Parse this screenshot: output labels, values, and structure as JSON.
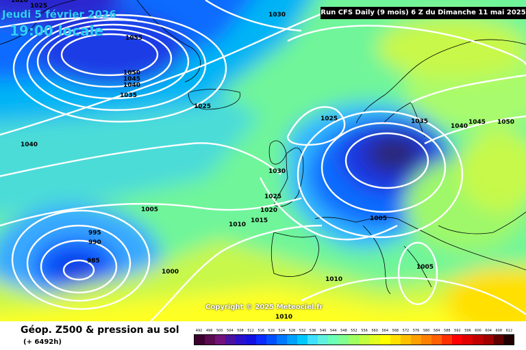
{
  "header": {
    "date": "Jeudi 5 février 2026",
    "time": "19:00 locale",
    "run_info": "Run CFS Daily (9 mois) 6 Z du Dimanche 11 mai 2025"
  },
  "copyright": "Copyright © 2025 Meteociel.fr",
  "footer": {
    "title": "Géop. Z500 & pression au sol",
    "subtitle": "(+ 6492h)"
  },
  "isobars": [
    {
      "label": "1020",
      "name": "isobar-label-1020-a"
    },
    {
      "label": "1025",
      "name": "isobar-label-1025-a"
    },
    {
      "label": "1030",
      "name": "isobar-label-1030-a"
    },
    {
      "label": "1055",
      "name": "isobar-label-1055"
    },
    {
      "label": "1050",
      "name": "isobar-label-1050-a"
    },
    {
      "label": "1045",
      "name": "isobar-label-1045-a"
    },
    {
      "label": "1040",
      "name": "isobar-label-1040-a"
    },
    {
      "label": "1035",
      "name": "isobar-label-1035-a"
    },
    {
      "label": "1025",
      "name": "isobar-label-1025-b"
    },
    {
      "label": "1025",
      "name": "isobar-label-1025-c"
    },
    {
      "label": "1040",
      "name": "isobar-label-1040-b"
    },
    {
      "label": "1030",
      "name": "isobar-label-1030-b"
    },
    {
      "label": "1025",
      "name": "isobar-label-1025-d"
    },
    {
      "label": "1020",
      "name": "isobar-label-1020-b"
    },
    {
      "label": "1015",
      "name": "isobar-label-1015"
    },
    {
      "label": "1010",
      "name": "isobar-label-1010-a"
    },
    {
      "label": "1005",
      "name": "isobar-label-1005-a"
    },
    {
      "label": "995",
      "name": "isobar-label-995"
    },
    {
      "label": "990",
      "name": "isobar-label-990"
    },
    {
      "label": "985",
      "name": "isobar-label-985"
    },
    {
      "label": "1000",
      "name": "isobar-label-1000"
    },
    {
      "label": "1035",
      "name": "isobar-label-1035-b"
    },
    {
      "label": "1040",
      "name": "isobar-label-1040-c"
    },
    {
      "label": "1045",
      "name": "isobar-label-1045-b"
    },
    {
      "label": "1050",
      "name": "isobar-label-1050-b"
    },
    {
      "label": "1005",
      "name": "isobar-label-1005-b"
    },
    {
      "label": "1005",
      "name": "isobar-label-1005-c"
    },
    {
      "label": "1010",
      "name": "isobar-label-1010-b"
    },
    {
      "label": "1010",
      "name": "isobar-label-1010-c"
    }
  ],
  "legend": {
    "values": [
      "492",
      "496",
      "500",
      "504",
      "508",
      "512",
      "516",
      "520",
      "524",
      "528",
      "532",
      "536",
      "540",
      "544",
      "548",
      "552",
      "556",
      "560",
      "564",
      "568",
      "572",
      "576",
      "580",
      "584",
      "588",
      "592",
      "596",
      "600",
      "604",
      "608",
      "612"
    ],
    "colors": [
      "#3c0030",
      "#5a0a4f",
      "#72127a",
      "#4a12a0",
      "#2a10c8",
      "#1210e0",
      "#0a2aff",
      "#0050ff",
      "#0078ff",
      "#00a0ff",
      "#00c8ff",
      "#40e0ff",
      "#60f0e0",
      "#6cffb8",
      "#80ff90",
      "#a0ff60",
      "#c0ff40",
      "#e0ff20",
      "#ffff00",
      "#ffe000",
      "#ffc000",
      "#ffa000",
      "#ff8000",
      "#ff6000",
      "#ff3000",
      "#ff0000",
      "#e00000",
      "#c00000",
      "#a00000",
      "#600000",
      "#200000"
    ]
  }
}
